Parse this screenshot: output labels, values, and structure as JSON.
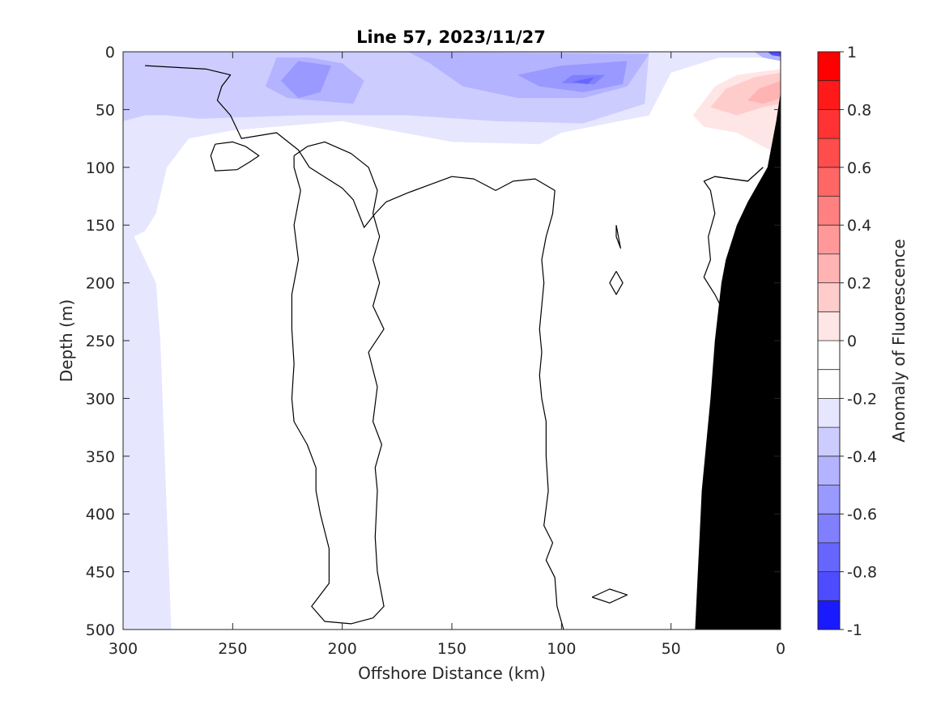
{
  "chart_data": {
    "type": "heatmap",
    "title": "Line 57, 2023/11/27",
    "xlabel": "Offshore Distance (km)",
    "ylabel": "Depth (m)",
    "xlim": [
      300,
      0
    ],
    "ylim": [
      0,
      500
    ],
    "x_reversed": true,
    "y_reversed": true,
    "x_ticks": [
      300,
      250,
      200,
      150,
      100,
      50,
      0
    ],
    "y_ticks": [
      0,
      50,
      100,
      150,
      200,
      250,
      300,
      350,
      400,
      450,
      500
    ],
    "grid": false,
    "colorbar": {
      "label": "Anomaly of Fluorescence",
      "range": [
        -1,
        1
      ],
      "ticks": [
        1,
        0.8,
        0.6,
        0.4,
        0.2,
        0,
        -0.2,
        -0.4,
        -0.6,
        -0.8,
        -1
      ],
      "tick_labels": [
        "1",
        "0.8",
        "0.6",
        "0.4",
        "0.2",
        "0",
        "-0.2",
        "-0.4",
        "-0.6",
        "-0.8",
        "-1"
      ],
      "levels": [
        {
          "min": 0.9,
          "max": 1.0,
          "color": "#ff0000"
        },
        {
          "min": 0.8,
          "max": 0.9,
          "color": "#ff1a1a"
        },
        {
          "min": 0.7,
          "max": 0.8,
          "color": "#ff3333"
        },
        {
          "min": 0.6,
          "max": 0.7,
          "color": "#ff4d4d"
        },
        {
          "min": 0.5,
          "max": 0.6,
          "color": "#ff6666"
        },
        {
          "min": 0.4,
          "max": 0.5,
          "color": "#ff8080"
        },
        {
          "min": 0.3,
          "max": 0.4,
          "color": "#ff9999"
        },
        {
          "min": 0.2,
          "max": 0.3,
          "color": "#ffb3b3"
        },
        {
          "min": 0.1,
          "max": 0.2,
          "color": "#ffcccc"
        },
        {
          "min": 0.0,
          "max": 0.1,
          "color": "#ffe6e6"
        },
        {
          "min": -0.1,
          "max": 0.0,
          "color": "#ffffff"
        },
        {
          "min": -0.2,
          "max": -0.1,
          "color": "#ffffff"
        },
        {
          "min": -0.3,
          "max": -0.2,
          "color": "#e6e6ff"
        },
        {
          "min": -0.4,
          "max": -0.3,
          "color": "#ccccff"
        },
        {
          "min": -0.5,
          "max": -0.4,
          "color": "#b3b3ff"
        },
        {
          "min": -0.6,
          "max": -0.5,
          "color": "#9999ff"
        },
        {
          "min": -0.7,
          "max": -0.6,
          "color": "#8080ff"
        },
        {
          "min": -0.8,
          "max": -0.7,
          "color": "#6666ff"
        },
        {
          "min": -0.9,
          "max": -0.8,
          "color": "#4d4dff"
        },
        {
          "min": -1.0,
          "max": -0.9,
          "color": "#1a1aff"
        }
      ]
    },
    "shaded_regions": [
      {
        "level": -0.2,
        "color": "#e6e6ff",
        "points": [
          [
            300,
            0
          ],
          [
            0,
            0
          ],
          [
            0,
            5
          ],
          [
            28,
            5
          ],
          [
            50,
            18
          ],
          [
            60,
            55
          ],
          [
            100,
            70
          ],
          [
            110,
            80
          ],
          [
            150,
            78
          ],
          [
            200,
            60
          ],
          [
            250,
            68
          ],
          [
            270,
            75
          ],
          [
            280,
            100
          ],
          [
            285,
            140
          ],
          [
            290,
            155
          ],
          [
            295,
            160
          ],
          [
            290,
            180
          ],
          [
            285,
            200
          ],
          [
            283,
            250
          ],
          [
            282,
            300
          ],
          [
            281,
            350
          ],
          [
            280,
            400
          ],
          [
            279,
            450
          ],
          [
            278,
            500
          ],
          [
            300,
            500
          ]
        ]
      },
      {
        "level": -0.3,
        "color": "#ccccff",
        "points": [
          [
            300,
            0
          ],
          [
            60,
            0
          ],
          [
            62,
            45
          ],
          [
            90,
            62
          ],
          [
            130,
            60
          ],
          [
            170,
            55
          ],
          [
            200,
            55
          ],
          [
            220,
            55
          ],
          [
            265,
            58
          ],
          [
            280,
            55
          ],
          [
            290,
            55
          ],
          [
            300,
            60
          ]
        ]
      },
      {
        "level": -0.4,
        "color": "#b3b3ff",
        "points": [
          [
            60,
            2
          ],
          [
            70,
            30
          ],
          [
            90,
            40
          ],
          [
            120,
            40
          ],
          [
            145,
            30
          ],
          [
            160,
            10
          ],
          [
            170,
            0
          ]
        ]
      },
      {
        "level": -0.4,
        "color": "#b3b3ff",
        "points": [
          [
            230,
            5
          ],
          [
            235,
            30
          ],
          [
            225,
            40
          ],
          [
            195,
            45
          ],
          [
            190,
            25
          ],
          [
            200,
            10
          ],
          [
            215,
            5
          ]
        ]
      },
      {
        "level": -0.5,
        "color": "#9999ff",
        "points": [
          [
            70,
            8
          ],
          [
            72,
            28
          ],
          [
            90,
            35
          ],
          [
            110,
            30
          ],
          [
            120,
            20
          ],
          [
            100,
            12
          ]
        ]
      },
      {
        "level": -0.5,
        "color": "#9999ff",
        "points": [
          [
            205,
            12
          ],
          [
            210,
            35
          ],
          [
            220,
            40
          ],
          [
            228,
            25
          ],
          [
            220,
            8
          ]
        ]
      },
      {
        "level": -0.6,
        "color": "#8080ff",
        "points": [
          [
            80,
            20
          ],
          [
            85,
            28
          ],
          [
            100,
            27
          ],
          [
            95,
            20
          ]
        ]
      },
      {
        "level": -0.7,
        "color": "#6666ff",
        "points": [
          [
            85,
            22
          ],
          [
            88,
            28
          ],
          [
            95,
            26
          ]
        ]
      },
      {
        "level": -0.5,
        "color": "#b3b3ff",
        "points": [
          [
            0,
            0
          ],
          [
            12,
            0
          ],
          [
            8,
            5
          ],
          [
            0,
            8
          ]
        ]
      },
      {
        "level": -0.8,
        "color": "#4d4dff",
        "points": [
          [
            0,
            0
          ],
          [
            6,
            0
          ],
          [
            4,
            3
          ],
          [
            0,
            4
          ]
        ]
      },
      {
        "level": -0.2,
        "color": "#e6e6ff",
        "points": [
          [
            300,
            495
          ],
          [
            290,
            494
          ],
          [
            285,
            497
          ],
          [
            288,
            500
          ],
          [
            300,
            500
          ]
        ]
      },
      {
        "level": 0.1,
        "color": "#ffe6e6",
        "points": [
          [
            0,
            15
          ],
          [
            20,
            20
          ],
          [
            30,
            30
          ],
          [
            40,
            55
          ],
          [
            35,
            65
          ],
          [
            20,
            70
          ],
          [
            5,
            85
          ],
          [
            0,
            90
          ]
        ]
      },
      {
        "level": 0.2,
        "color": "#ffcccc",
        "points": [
          [
            0,
            18
          ],
          [
            12,
            22
          ],
          [
            25,
            32
          ],
          [
            32,
            48
          ],
          [
            20,
            55
          ],
          [
            8,
            48
          ],
          [
            0,
            45
          ]
        ]
      },
      {
        "level": 0.3,
        "color": "#ffb3b3",
        "points": [
          [
            0,
            25
          ],
          [
            10,
            32
          ],
          [
            15,
            42
          ],
          [
            8,
            45
          ],
          [
            0,
            40
          ]
        ]
      }
    ],
    "contour_lines": [
      {
        "level": 0,
        "points": [
          [
            258,
            80
          ],
          [
            250,
            78
          ],
          [
            244,
            82
          ],
          [
            238,
            90
          ],
          [
            242,
            95
          ],
          [
            248,
            102
          ],
          [
            258,
            103
          ],
          [
            260,
            90
          ],
          [
            258,
            80
          ]
        ]
      },
      {
        "level": 0,
        "points": [
          [
            222,
            90
          ],
          [
            216,
            82
          ],
          [
            208,
            78
          ],
          [
            196,
            88
          ],
          [
            188,
            100
          ],
          [
            184,
            120
          ],
          [
            186,
            140
          ],
          [
            183,
            160
          ],
          [
            186,
            180
          ],
          [
            183,
            200
          ],
          [
            186,
            220
          ],
          [
            181,
            240
          ],
          [
            188,
            260
          ],
          [
            184,
            290
          ],
          [
            186,
            320
          ],
          [
            182,
            340
          ],
          [
            185,
            360
          ],
          [
            184,
            380
          ],
          [
            185,
            420
          ],
          [
            184,
            450
          ],
          [
            181,
            480
          ],
          [
            186,
            490
          ],
          [
            196,
            495
          ],
          [
            208,
            493
          ],
          [
            214,
            480
          ],
          [
            206,
            460
          ],
          [
            206,
            430
          ],
          [
            210,
            400
          ],
          [
            212,
            380
          ],
          [
            212,
            360
          ],
          [
            216,
            340
          ],
          [
            222,
            320
          ],
          [
            223,
            300
          ],
          [
            222,
            270
          ],
          [
            223,
            240
          ],
          [
            223,
            210
          ],
          [
            220,
            180
          ],
          [
            222,
            150
          ],
          [
            219,
            120
          ],
          [
            222,
            100
          ],
          [
            222,
            90
          ]
        ]
      },
      {
        "level": 0,
        "points": [
          [
            99,
            500
          ],
          [
            102,
            480
          ],
          [
            103,
            455
          ],
          [
            107,
            440
          ],
          [
            104,
            425
          ],
          [
            108,
            410
          ],
          [
            106,
            380
          ],
          [
            107,
            350
          ],
          [
            107,
            320
          ],
          [
            109,
            300
          ],
          [
            110,
            280
          ],
          [
            109,
            260
          ],
          [
            110,
            240
          ],
          [
            108,
            200
          ],
          [
            109,
            180
          ],
          [
            107,
            160
          ],
          [
            104,
            140
          ],
          [
            103,
            120
          ],
          [
            112,
            110
          ],
          [
            122,
            112
          ],
          [
            130,
            120
          ],
          [
            140,
            110
          ],
          [
            150,
            108
          ],
          [
            160,
            115
          ],
          [
            170,
            122
          ],
          [
            180,
            130
          ],
          [
            185,
            140
          ],
          [
            190,
            152
          ],
          [
            195,
            128
          ],
          [
            200,
            118
          ],
          [
            205,
            112
          ],
          [
            215,
            100
          ],
          [
            220,
            85
          ],
          [
            230,
            70
          ],
          [
            246,
            75
          ],
          [
            251,
            55
          ],
          [
            257,
            42
          ],
          [
            255,
            30
          ],
          [
            251,
            20
          ],
          [
            262,
            15
          ],
          [
            290,
            12
          ]
        ]
      },
      {
        "level": 0,
        "points": [
          [
            75,
            150
          ],
          [
            74,
            160
          ],
          [
            73,
            170
          ],
          [
            75,
            160
          ],
          [
            75,
            150
          ]
        ]
      },
      {
        "level": 0,
        "points": [
          [
            75,
            190
          ],
          [
            72,
            200
          ],
          [
            75,
            210
          ],
          [
            78,
            200
          ],
          [
            75,
            190
          ]
        ]
      },
      {
        "level": 0,
        "points": [
          [
            86,
            472
          ],
          [
            78,
            465
          ],
          [
            70,
            470
          ],
          [
            78,
            477
          ],
          [
            86,
            472
          ]
        ]
      },
      {
        "level": 0,
        "points": [
          [
            30,
            108
          ],
          [
            15,
            112
          ],
          [
            8,
            100
          ]
        ]
      },
      {
        "level": 0,
        "points": [
          [
            8,
            100
          ],
          [
            15,
            112
          ],
          [
            30,
            108
          ],
          [
            35,
            112
          ],
          [
            32,
            120
          ],
          [
            30,
            140
          ],
          [
            33,
            160
          ],
          [
            32,
            180
          ],
          [
            35,
            195
          ],
          [
            30,
            210
          ],
          [
            26,
            225
          ],
          [
            24,
            230
          ]
        ]
      }
    ],
    "mask_region": {
      "label": "bottom topography",
      "color": "#000000",
      "points": [
        [
          0,
          35
        ],
        [
          2,
          60
        ],
        [
          6,
          100
        ],
        [
          15,
          130
        ],
        [
          20,
          150
        ],
        [
          25,
          180
        ],
        [
          27,
          200
        ],
        [
          30,
          250
        ],
        [
          32,
          300
        ],
        [
          34,
          340
        ],
        [
          36,
          380
        ],
        [
          37,
          420
        ],
        [
          38,
          460
        ],
        [
          39,
          500
        ],
        [
          0,
          500
        ]
      ]
    }
  }
}
